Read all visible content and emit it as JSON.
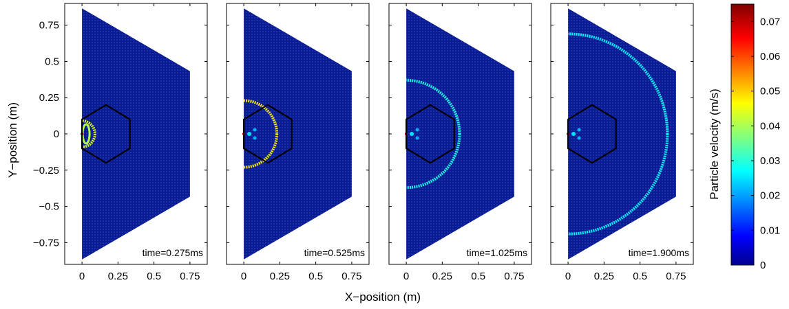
{
  "figure": {
    "ylabel": "Y−position (m)",
    "xlabel": "X−position (m)",
    "colorbar_label": "Particle velocity (m/s)"
  },
  "chart_data": {
    "type": "heatmap",
    "axes": {
      "xlim": [
        -0.12,
        0.87
      ],
      "ylim": [
        -0.9,
        0.9
      ],
      "xticks": [
        0,
        0.25,
        0.5,
        0.75
      ],
      "xtick_labels": [
        "0",
        "0.25",
        "0.5",
        "0.75"
      ],
      "yticks": [
        -0.75,
        -0.5,
        -0.25,
        0,
        0.25,
        0.5,
        0.75
      ],
      "ytick_labels": [
        "−0.75",
        "−0.5",
        "−0.25",
        "0",
        "0.25",
        "0.5",
        "0.75"
      ]
    },
    "domain_outline": [
      [
        0,
        0.866
      ],
      [
        0.75,
        0.433
      ],
      [
        0.75,
        -0.433
      ],
      [
        0,
        -0.866
      ]
    ],
    "hexagon_outline": [
      [
        0,
        0.1
      ],
      [
        0.167,
        0.2
      ],
      [
        0.333,
        0.1
      ],
      [
        0.333,
        -0.1
      ],
      [
        0.167,
        -0.2
      ],
      [
        0,
        -0.1
      ]
    ],
    "panels": [
      {
        "label": "time=0.275ms",
        "wavefront_radius": 0.09,
        "peak_velocity": 0.045
      },
      {
        "label": "time=0.525ms",
        "wavefront_radius": 0.23,
        "peak_velocity": 0.048
      },
      {
        "label": "time=1.025ms",
        "wavefront_radius": 0.37,
        "peak_velocity": 0.03
      },
      {
        "label": "time=1.900ms",
        "wavefront_radius": 0.69,
        "peak_velocity": 0.028
      }
    ],
    "colorbar": {
      "colormap": "jet",
      "range": [
        0,
        0.075
      ],
      "ticks": [
        0,
        0.01,
        0.02,
        0.03,
        0.04,
        0.05,
        0.06,
        0.07
      ],
      "tick_labels": [
        "0",
        "0.01",
        "0.02",
        "0.03",
        "0.04",
        "0.05",
        "0.06",
        "0.07"
      ]
    },
    "colors": {
      "background_field": "#0a1c8f",
      "outline": "#000000"
    }
  }
}
